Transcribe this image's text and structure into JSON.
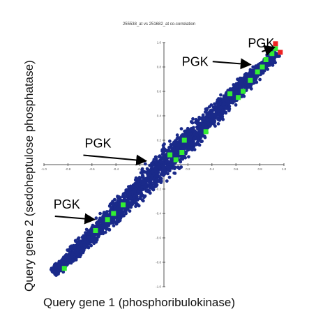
{
  "chart_data": {
    "type": "scatter",
    "title": "255538_at vs 251682_at co-correlation",
    "xlabel": "Query gene 1 (phosphoribulokinase)",
    "ylabel": "Query gene 2 (sedoheptulose phosphatase)",
    "xlim": [
      -1.0,
      1.0
    ],
    "ylim": [
      -1.0,
      1.0
    ],
    "x_ticks": [
      "-1.0",
      "-0.8",
      "-0.6",
      "-0.4",
      "-0.2",
      "0.2",
      "0.4",
      "0.6",
      "0.8",
      "1.0"
    ],
    "y_ticks": [
      "1.0",
      "0.8",
      "0.6",
      "0.4",
      "0.2",
      "-0.2",
      "-0.4",
      "-0.6",
      "-0.8",
      "-1.0"
    ],
    "grid": false,
    "series": [
      {
        "color": "#1a2a8a",
        "description_points": "dense cloud along diagonal",
        "x": [
          -0.9,
          -0.8,
          -0.7,
          -0.6,
          -0.5,
          -0.4,
          -0.3,
          -0.2,
          -0.1,
          0.0,
          0.1,
          0.2,
          0.3,
          0.4,
          0.5,
          0.6,
          0.7,
          0.8,
          0.9
        ],
        "y": [
          -0.88,
          -0.78,
          -0.69,
          -0.59,
          -0.5,
          -0.4,
          -0.3,
          -0.2,
          -0.1,
          0.0,
          0.1,
          0.21,
          0.31,
          0.41,
          0.5,
          0.6,
          0.7,
          0.79,
          0.88
        ]
      },
      {
        "color": "#33ee33",
        "x": [
          -0.83,
          -0.57,
          -0.47,
          -0.42,
          -0.34,
          0.05,
          0.1,
          0.15,
          0.17,
          0.35,
          0.55,
          0.62,
          0.66,
          0.72,
          0.78,
          0.82,
          0.85,
          0.9,
          0.93
        ],
        "y": [
          -0.85,
          -0.54,
          -0.45,
          -0.4,
          -0.33,
          0.08,
          0.04,
          0.1,
          0.2,
          0.27,
          0.58,
          0.55,
          0.6,
          0.69,
          0.76,
          0.8,
          0.86,
          0.91,
          0.95
        ]
      },
      {
        "color": "#ee2222",
        "x": [
          0.93,
          0.97
        ],
        "y": [
          0.99,
          0.92
        ]
      }
    ],
    "annotations": [
      {
        "text": "PGK",
        "x": 0.7,
        "y": 0.96
      },
      {
        "text": "PGK",
        "x": 0.15,
        "y": 0.81
      },
      {
        "text": "PGK",
        "x": -0.66,
        "y": 0.14
      },
      {
        "text": "PGK",
        "x": -0.92,
        "y": -0.36
      }
    ]
  },
  "colors": {
    "background": "#ffffff",
    "axis": "#555555",
    "arrow": "#000000",
    "annotation_text": "#000000"
  },
  "left_edge_text": "Query gene 2 (sedoheptulose phosphatase)"
}
